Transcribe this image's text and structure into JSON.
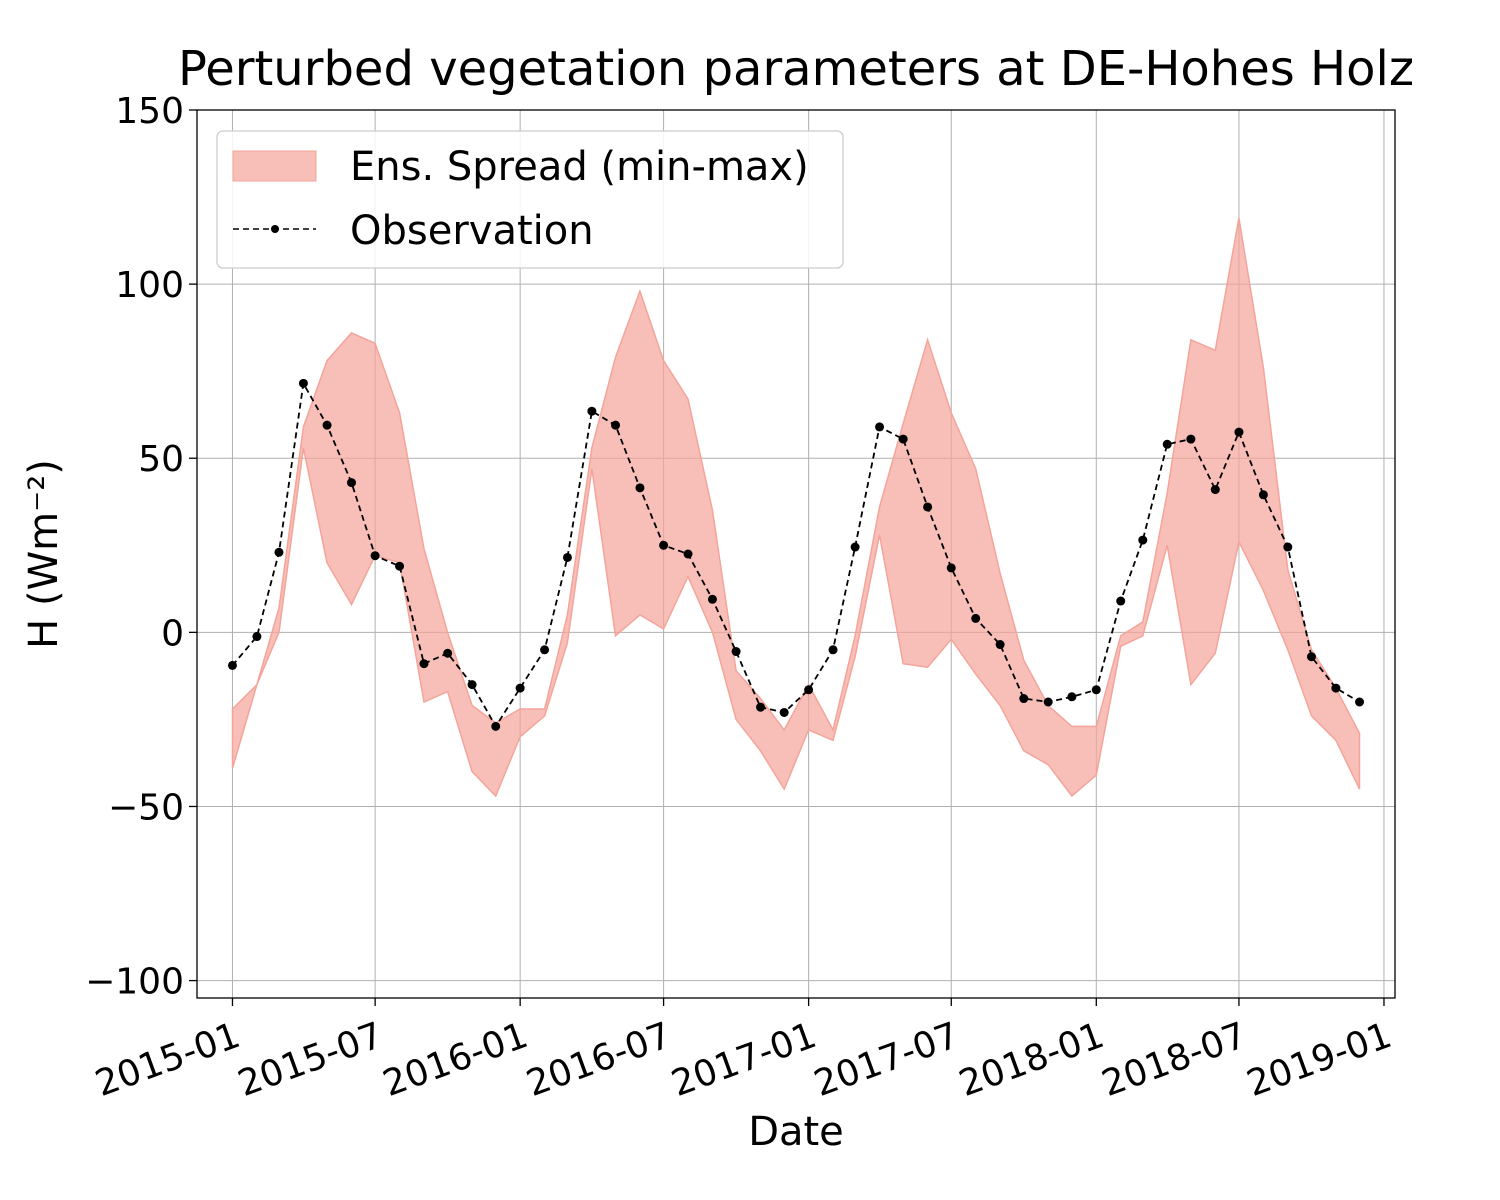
{
  "chart_data": {
    "type": "area",
    "title": "Perturbed vegetation parameters at DE-Hohes Holz",
    "xlabel": "Date",
    "ylabel": "H  (Wm⁻²)",
    "ylim": [
      -105,
      150
    ],
    "xlim": [
      "2014-11-17",
      "2019-01-15"
    ],
    "yticks": [
      150,
      100,
      50,
      0,
      -50,
      -100
    ],
    "ytick_labels": [
      "150",
      "100",
      "50",
      "0",
      "−50",
      "−100"
    ],
    "xticks": [
      "2015-01",
      "2015-07",
      "2016-01",
      "2016-07",
      "2017-01",
      "2017-07",
      "2018-01",
      "2018-07",
      "2019-01"
    ],
    "grid": true,
    "legend_position": "top-left",
    "colors": {
      "spread": "#f4a49a",
      "observation": "#000000",
      "grid": "#b0b0b0"
    },
    "series": [
      {
        "name": "Ens. Spread (min-max)",
        "type": "band",
        "x": [
          "2015-01",
          "2015-02",
          "2015-03",
          "2015-04",
          "2015-05",
          "2015-06",
          "2015-07",
          "2015-08",
          "2015-09",
          "2015-10",
          "2015-11",
          "2015-12",
          "2016-01",
          "2016-02",
          "2016-03",
          "2016-04",
          "2016-05",
          "2016-06",
          "2016-07",
          "2016-08",
          "2016-09",
          "2016-10",
          "2016-11",
          "2016-12",
          "2017-01",
          "2017-02",
          "2017-03",
          "2017-04",
          "2017-05",
          "2017-06",
          "2017-07",
          "2017-08",
          "2017-09",
          "2017-10",
          "2017-11",
          "2017-12",
          "2018-01",
          "2018-02",
          "2018-03",
          "2018-04",
          "2018-05",
          "2018-06",
          "2018-07",
          "2018-08",
          "2018-09",
          "2018-10",
          "2018-11",
          "2018-12"
        ],
        "min": [
          -39,
          -15,
          0,
          53,
          20,
          8,
          22,
          20,
          -20,
          -17,
          -40,
          -47,
          -30,
          -24,
          -3,
          47,
          -1,
          5,
          1,
          16,
          0,
          -25,
          -34,
          -45,
          -28,
          -31,
          -7,
          28,
          -9,
          -10,
          -2,
          -12,
          -21,
          -34,
          -38,
          -47,
          -41,
          -4,
          -1,
          25,
          -15,
          -6,
          26,
          12,
          -5,
          -24,
          -31,
          -45
        ],
        "max": [
          -22,
          -15,
          7,
          59,
          78,
          86,
          83,
          63,
          24,
          0,
          -21,
          -26,
          -22,
          -22,
          5,
          53,
          79,
          98,
          78,
          67,
          35,
          -11,
          -19,
          -28,
          -15,
          -28,
          -1,
          36,
          60,
          84,
          63,
          47,
          17,
          -8,
          -21,
          -27,
          -27,
          -1,
          3,
          40,
          84,
          81,
          119,
          76,
          18,
          -5,
          -16,
          -29
        ]
      },
      {
        "name": "Observation",
        "type": "line",
        "x": [
          "2015-01",
          "2015-02",
          "2015-03",
          "2015-04",
          "2015-05",
          "2015-06",
          "2015-07",
          "2015-08",
          "2015-09",
          "2015-10",
          "2015-11",
          "2015-12",
          "2016-01",
          "2016-02",
          "2016-03",
          "2016-04",
          "2016-05",
          "2016-06",
          "2016-07",
          "2016-08",
          "2016-09",
          "2016-10",
          "2016-11",
          "2016-12",
          "2017-01",
          "2017-02",
          "2017-03",
          "2017-04",
          "2017-05",
          "2017-06",
          "2017-07",
          "2017-08",
          "2017-09",
          "2017-10",
          "2017-11",
          "2017-12",
          "2018-01",
          "2018-02",
          "2018-03",
          "2018-04",
          "2018-05",
          "2018-06",
          "2018-07",
          "2018-08",
          "2018-09",
          "2018-10",
          "2018-11",
          "2018-12"
        ],
        "values": [
          -9.5,
          -1.2,
          23,
          71.5,
          59.5,
          43,
          22,
          19,
          -9,
          -6,
          -15,
          -27,
          -16,
          -5,
          21.5,
          63.5,
          59.5,
          41.5,
          25,
          22.5,
          9.5,
          -5.5,
          -21.5,
          -23,
          -16.5,
          -5,
          24.5,
          59,
          55.5,
          36,
          18.5,
          4,
          -3.5,
          -19,
          -20,
          -18.5,
          -16.5,
          9,
          26.5,
          54,
          55.5,
          41,
          57.5,
          39.5,
          24.5,
          -7,
          -16,
          -20
        ]
      }
    ]
  }
}
